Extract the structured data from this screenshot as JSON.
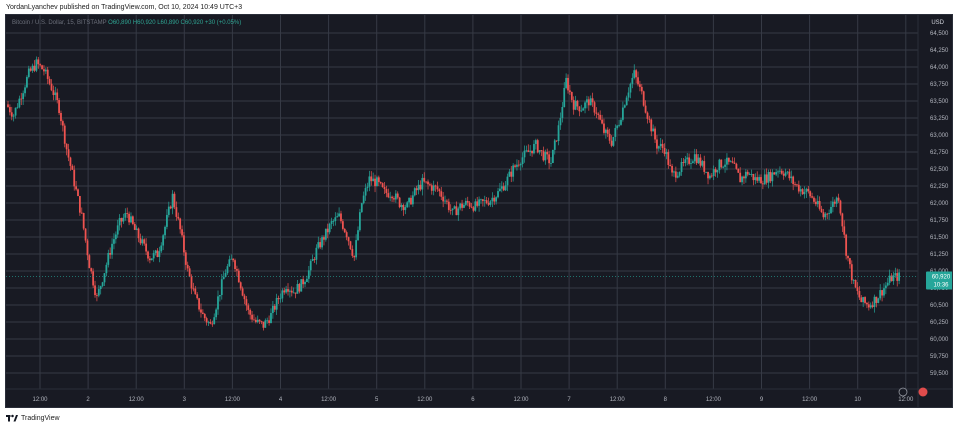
{
  "header": {
    "text": "YordanLyanchev published on TradingView.com, Oct 10, 2024 10:49 UTC+3"
  },
  "symbol": {
    "name": "Bitcoin / U.S. Dollar, 15, BITSTAMP",
    "ohlc": "O60,890  H60,920  L60,890  C60,920  +30 (+0.05%)"
  },
  "currency": "USD",
  "last_price": {
    "value": "60,920",
    "countdown": "10:36"
  },
  "footer": {
    "brand": "TradingView"
  },
  "colors": {
    "up": "#26a69a",
    "down": "#ef5350",
    "background": "#181a23",
    "grid": "#363a45"
  },
  "chart_data": {
    "type": "candlestick",
    "y_ticks": [
      "64,500",
      "64,250",
      "64,000",
      "63,750",
      "63,500",
      "63,250",
      "63,000",
      "62,750",
      "62,500",
      "62,250",
      "62,000",
      "61,750",
      "61,500",
      "61,250",
      "61,000",
      "60,750",
      "60,500",
      "60,250",
      "60,000",
      "59,750",
      "59,500"
    ],
    "ylim": [
      59400,
      64700
    ],
    "x_ticks": [
      "12:00",
      "2",
      "12:00",
      "3",
      "12:00",
      "4",
      "12:00",
      "5",
      "12:00",
      "6",
      "12:00",
      "7",
      "12:00",
      "8",
      "12:00",
      "9",
      "12:00",
      "10",
      "12:00"
    ],
    "series": [
      {
        "values": [
          63450,
          63300,
          63600,
          63900,
          64050,
          63950,
          63700,
          63400,
          62800,
          62300,
          61800,
          61100,
          60600,
          61000,
          61400,
          61700,
          61850,
          61600,
          61400,
          61200,
          61250,
          61650,
          62100,
          61600,
          61000,
          60600,
          60350,
          60200,
          60600,
          61000,
          61200,
          60800,
          60400,
          60250,
          60200,
          60350,
          60600,
          60800,
          60700,
          60800,
          61000,
          61300,
          61500,
          61700,
          61800,
          61550,
          61200,
          62000,
          62350,
          62300,
          62150,
          62150,
          62000,
          61950,
          62150,
          62300,
          62250,
          62200,
          62050,
          61850,
          61950,
          62000,
          61950,
          62000,
          62050,
          62150,
          62300,
          62500,
          62650,
          62750,
          62850,
          62700,
          62600,
          63100,
          63800,
          63450,
          63400,
          63500,
          63350,
          63050,
          62900,
          63200,
          63600,
          63900,
          63600,
          63200,
          62850,
          62800,
          62400,
          62500,
          62600,
          62700,
          62550,
          62400,
          62550,
          62600,
          62550,
          62350,
          62450,
          62350,
          62350,
          62400,
          62500,
          62450,
          62300,
          62200,
          62150,
          62000,
          61800,
          61950,
          62100,
          61300,
          60800,
          60550,
          60500,
          60600,
          60750,
          60900,
          60920
        ]
      }
    ]
  }
}
